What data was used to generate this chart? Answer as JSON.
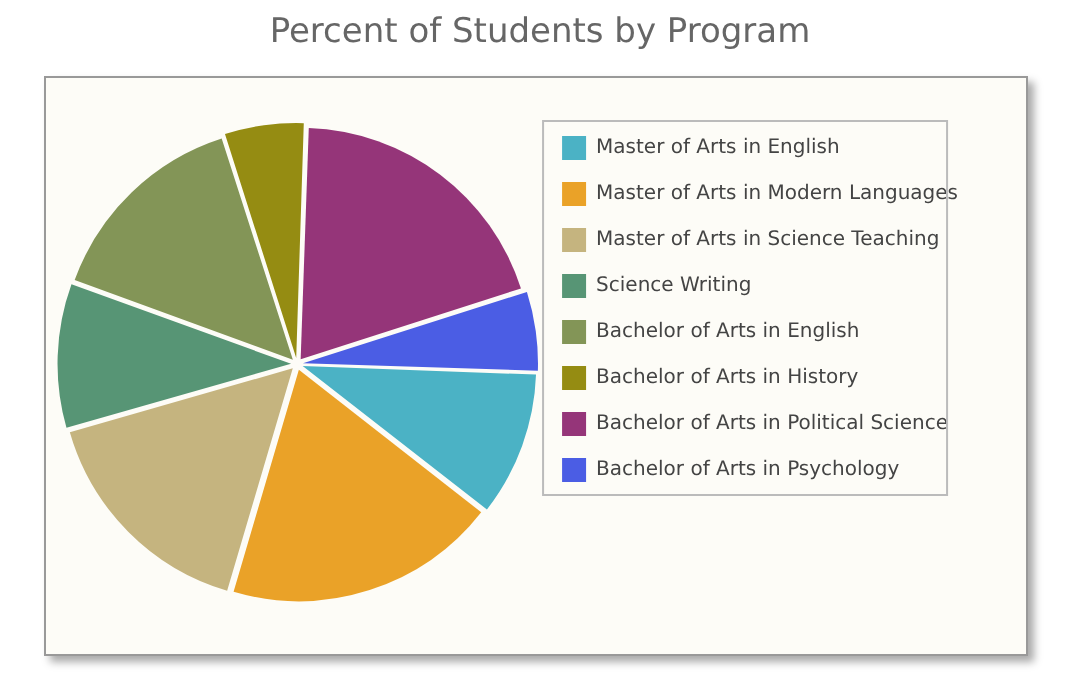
{
  "chart_data": {
    "type": "pie",
    "title": "Percent of Students by Program",
    "categories": [
      "Master of Arts in English",
      "Master of Arts in Modern Languages",
      "Master of Arts in Science Teaching",
      "Science Writing",
      "Bachelor of Arts in English",
      "Bachelor of Arts in History",
      "Bachelor of Arts in Political Science",
      "Bachelor of Arts in Psychology"
    ],
    "values": [
      10,
      19,
      16,
      10,
      14.5,
      5.5,
      19.5,
      5.5
    ],
    "colors": [
      "#4bb2c5",
      "#eaa228",
      "#c5b47f",
      "#579575",
      "#839557",
      "#958c12",
      "#953579",
      "#4b5de4"
    ],
    "legend": "top right"
  }
}
